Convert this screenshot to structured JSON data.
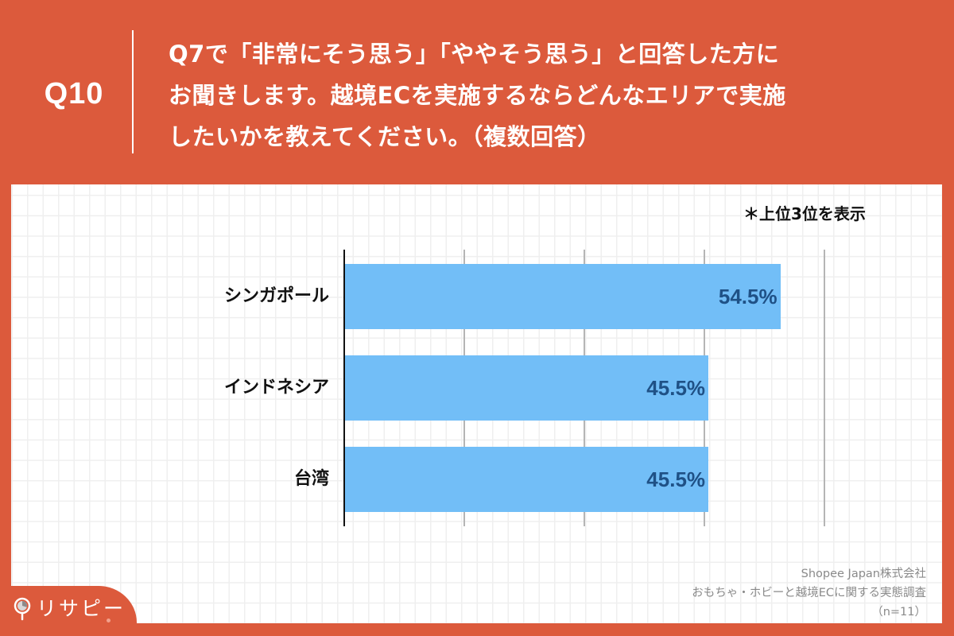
{
  "header": {
    "question_number": "Q10",
    "question_lines": [
      "Q7で「非常にそう思う」「ややそう思う」と回答した方に",
      "お聞きします。越境ECを実施するならどんなエリアで実施",
      "したいかを教えてください。（複数回答）"
    ]
  },
  "note": "＊上位3位を表示",
  "chart_data": {
    "type": "bar",
    "orientation": "horizontal",
    "title": "Q7で「非常にそう思う」「ややそう思う」と回答した方にお聞きします。越境ECを実施するならどんなエリアで実施したいかを教えてください。（複数回答）",
    "categories": [
      "シンガポール",
      "インドネシア",
      "台湾"
    ],
    "values": [
      54.5,
      45.5,
      45.5
    ],
    "value_labels": [
      "54.5%",
      "45.5%",
      "45.5%"
    ],
    "unit": "%",
    "xlabel": "",
    "ylabel": "",
    "xlim": [
      0,
      60
    ],
    "gridlines_at": [
      15,
      30,
      45,
      60
    ],
    "grid": true,
    "legend": null,
    "annotation": "＊上位3位を表示",
    "bar_color": "#72bef7",
    "label_color": "#1f5186"
  },
  "source": {
    "lines": [
      "Shopee Japan株式会社",
      "おもちゃ・ホビーと越境ECに関する実態調査",
      "（n=11）"
    ]
  },
  "logo": {
    "text": "リサピー",
    "icon": "magnifier-pie-icon"
  },
  "colors": {
    "brand_orange": "#dc5a3c",
    "panel_bg": "#ffffff",
    "grid": "#efefef"
  }
}
